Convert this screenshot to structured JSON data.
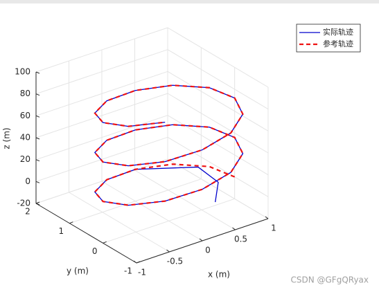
{
  "chart_data": {
    "type": "line3d",
    "xlabel": "x (m)",
    "ylabel": "y (m)",
    "zlabel": "z (m)",
    "xlim": [
      -1,
      1
    ],
    "ylim": [
      -1,
      2
    ],
    "zlim": [
      -20,
      100
    ],
    "xticks": [
      -1,
      -0.5,
      0,
      0.5,
      1
    ],
    "yticks": [
      -1,
      0,
      1,
      2
    ],
    "zticks": [
      -20,
      0,
      20,
      40,
      60,
      80,
      100
    ],
    "grid": true,
    "legend_position": "upper right",
    "series": [
      {
        "name": "实际轨迹",
        "color": "#0000cc",
        "dash": false,
        "x": [
          0.4,
          0.7,
          0.7,
          0,
          -0.5,
          -0.87,
          -1,
          -0.87,
          -0.5,
          0,
          0.5,
          0.87,
          1,
          0.87,
          0.5,
          0,
          -0.5,
          -0.87,
          -1,
          -0.87,
          -0.5,
          0,
          0.5,
          0.87,
          1,
          0.87,
          0.5,
          0,
          -0.5,
          -0.87,
          -1,
          -0.87,
          -0.5
        ],
        "y": [
          -0.6,
          -0.1,
          0.5,
          1,
          0.87,
          0.5,
          0,
          -0.5,
          -0.87,
          -1,
          -0.87,
          -0.5,
          0,
          0.5,
          0.87,
          1,
          0.87,
          0.5,
          0,
          -0.5,
          -0.87,
          -1,
          -0.87,
          -0.5,
          0,
          0.5,
          0.87,
          1,
          0.87,
          0.5,
          0,
          -0.5,
          -0.87
        ],
        "z": [
          0,
          3,
          6,
          9,
          12,
          15,
          18,
          21,
          24,
          27,
          30,
          33,
          36,
          39,
          42,
          45,
          48,
          51,
          54,
          57,
          60,
          63,
          66,
          69,
          72,
          75,
          78,
          81,
          84,
          87,
          90,
          93,
          96
        ]
      },
      {
        "name": "参考轨迹",
        "color": "#ee1111",
        "dash": true,
        "x": [
          1,
          0.87,
          0.5,
          0,
          -0.5,
          -0.87,
          -1,
          -0.87,
          -0.5,
          0,
          0.5,
          0.87,
          1,
          0.87,
          0.5,
          0,
          -0.5,
          -0.87,
          -1,
          -0.87,
          -0.5,
          0,
          0.5,
          0.87,
          1,
          0.87,
          0.5,
          0,
          -0.5,
          -0.87,
          -1,
          -0.87,
          -0.5
        ],
        "y": [
          0,
          0.5,
          0.87,
          1,
          0.87,
          0.5,
          0,
          -0.5,
          -0.87,
          -1,
          -0.87,
          -0.5,
          0,
          0.5,
          0.87,
          1,
          0.87,
          0.5,
          0,
          -0.5,
          -0.87,
          -1,
          -0.87,
          -0.5,
          0,
          0.5,
          0.87,
          1,
          0.87,
          0.5,
          0,
          -0.5,
          -0.87
        ],
        "z": [
          0,
          3,
          6,
          9,
          12,
          15,
          18,
          21,
          24,
          27,
          30,
          33,
          36,
          39,
          42,
          45,
          48,
          51,
          54,
          57,
          60,
          63,
          66,
          69,
          72,
          75,
          78,
          81,
          84,
          87,
          90,
          93,
          96
        ]
      }
    ]
  },
  "watermark": "CSDN @GFgQRyax"
}
